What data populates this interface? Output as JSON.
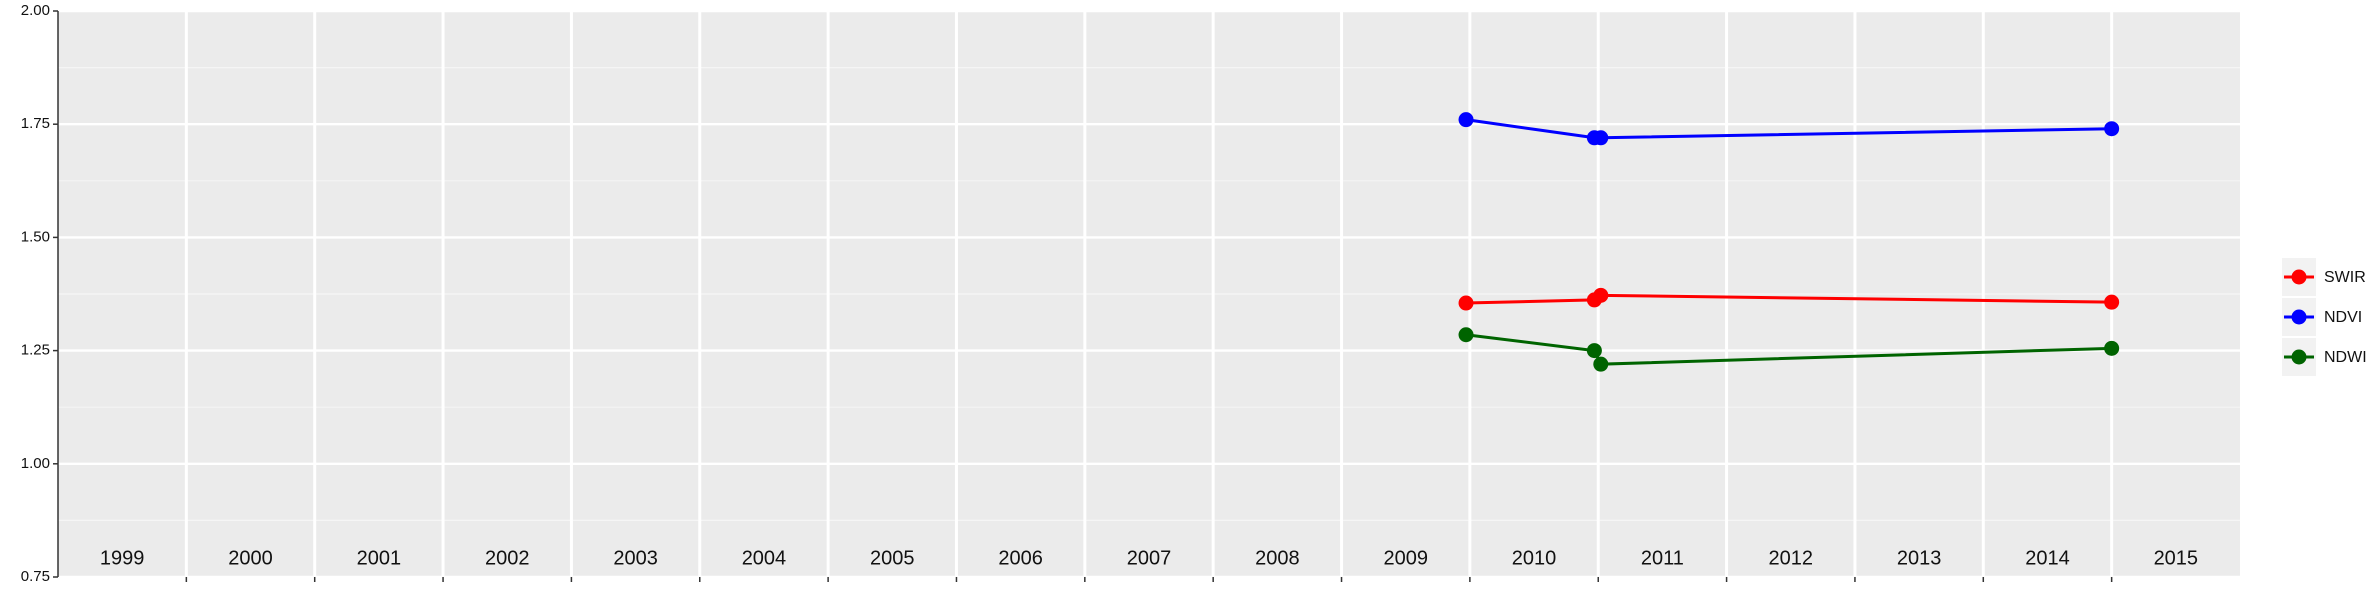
{
  "chart_data": {
    "type": "line",
    "x_bands": [
      "1999",
      "2000",
      "2001",
      "2002",
      "2003",
      "2004",
      "2005",
      "2006",
      "2007",
      "2008",
      "2009",
      "2010",
      "2011",
      "2012",
      "2013",
      "2014",
      "2015"
    ],
    "xlim": [
      1999,
      2016
    ],
    "x": [
      2009.97,
      2010.97,
      2011.02,
      2015.0
    ],
    "series": [
      {
        "name": "SWIR",
        "color": "#ff0000",
        "values": [
          1.355,
          1.362,
          1.372,
          1.357
        ]
      },
      {
        "name": "NDVI",
        "color": "#0000ff",
        "values": [
          1.76,
          1.72,
          1.72,
          1.74
        ]
      },
      {
        "name": "NDWI",
        "color": "#006400",
        "values": [
          1.285,
          1.25,
          1.22,
          1.255
        ]
      }
    ],
    "ylim": [
      0.75,
      2.0
    ],
    "yticks": [
      0.75,
      {
        "value": 1.0,
        "label": "1.00"
      },
      1.25,
      {
        "value": 1.5,
        "label": "1.50"
      },
      1.75,
      {
        "value": 2.0,
        "label": "2.00"
      }
    ],
    "grid": true,
    "legend": "right"
  }
}
